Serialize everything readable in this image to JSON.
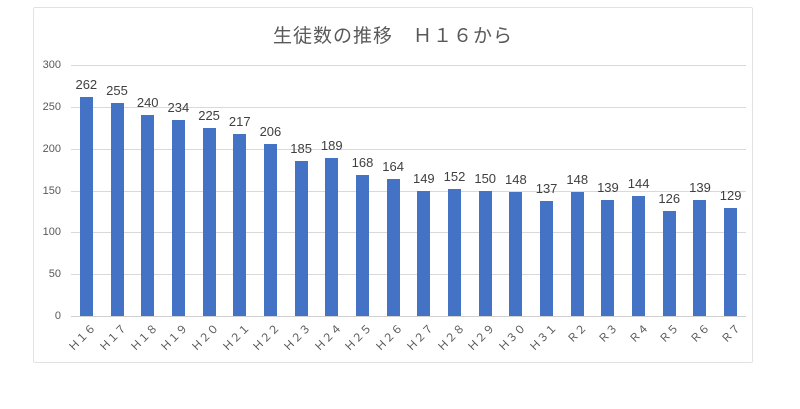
{
  "chart_data": {
    "type": "bar",
    "title": "生徒数の推移　Ｈ１６から",
    "categories": [
      "Ｈ１６",
      "Ｈ１７",
      "Ｈ１８",
      "Ｈ１９",
      "Ｈ２０",
      "Ｈ２１",
      "Ｈ２２",
      "Ｈ２３",
      "Ｈ２４",
      "Ｈ２５",
      "Ｈ２６",
      "Ｈ２７",
      "Ｈ２８",
      "Ｈ２９",
      "Ｈ３０",
      "Ｈ３１",
      "Ｒ２",
      "Ｒ３",
      "Ｒ４",
      "Ｒ５",
      "Ｒ６",
      "Ｒ７"
    ],
    "values": [
      262,
      255,
      240,
      234,
      225,
      217,
      206,
      185,
      189,
      168,
      164,
      149,
      152,
      150,
      148,
      137,
      148,
      139,
      144,
      126,
      139,
      129
    ],
    "data_labels": [
      "262",
      "255",
      "240",
      "234",
      "225",
      "217",
      "206",
      "185",
      "189",
      "168",
      "164",
      "149",
      "152",
      "150",
      "148",
      "137",
      "148",
      "139",
      "144",
      "126",
      "139",
      "129"
    ],
    "xlabel": "",
    "ylabel": "",
    "ylim": [
      0,
      300
    ],
    "yticks": [
      0,
      50,
      100,
      150,
      200,
      250,
      300
    ],
    "grid": true,
    "legend_position": "none",
    "bar_color": "#4472c4",
    "gridline_color": "#d9d9d9",
    "tick_label_color": "#595959",
    "data_label_color": "#404040",
    "title_color": "#595959"
  }
}
